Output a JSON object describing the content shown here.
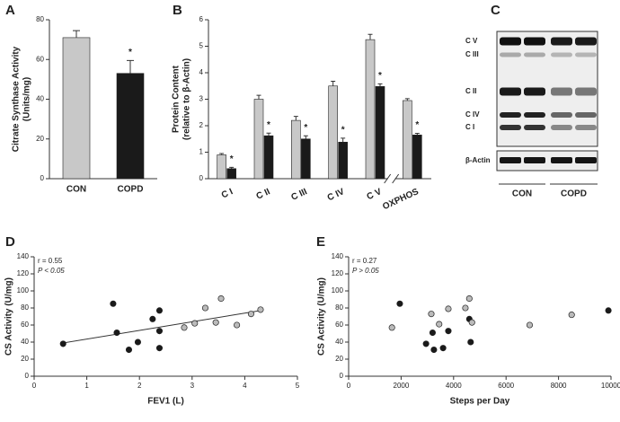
{
  "chart_data": [
    {
      "type": "bar",
      "panel": "A",
      "ylabel": [
        "Citrate Synthase Activity",
        "(Units/mg)"
      ],
      "categories": [
        "CON",
        "COPD"
      ],
      "values": [
        71,
        53
      ],
      "errors": [
        3.5,
        6.5
      ],
      "colors": [
        "#c8c8c8",
        "#1a1a1a"
      ],
      "asterisks": [
        null,
        "*"
      ],
      "ylim": [
        0,
        80
      ],
      "yticks": [
        0,
        20,
        40,
        60,
        80
      ]
    },
    {
      "type": "bar",
      "panel": "B",
      "ylabel": [
        "Protein Content",
        "(relative to β-Actin)"
      ],
      "categories": [
        "C I",
        "C II",
        "C III",
        "C IV",
        "C V",
        "OXPHOS"
      ],
      "series": [
        {
          "color": "#c8c8c8",
          "values": [
            0.9,
            3.0,
            2.2,
            3.5,
            5.25,
            2.95
          ],
          "errors": [
            0.05,
            0.15,
            0.15,
            0.18,
            0.2,
            0.07
          ]
        },
        {
          "color": "#1a1a1a",
          "values": [
            0.38,
            1.62,
            1.5,
            1.38,
            3.48,
            1.65
          ],
          "errors": [
            0.05,
            0.1,
            0.12,
            0.15,
            0.1,
            0.06
          ],
          "asterisks": [
            "*",
            "*",
            "*",
            "*",
            "*",
            "*"
          ]
        }
      ],
      "ylim": [
        0,
        6
      ],
      "yticks": [
        0,
        1,
        2,
        3,
        4,
        5,
        6
      ]
    },
    {
      "type": "scatter",
      "panel": "D",
      "xlabel": "FEV1 (L)",
      "ylabel": "CS Activity (U/mg)",
      "annotations": [
        "r = 0.55",
        "P < 0.05"
      ],
      "series": [
        {
          "color": "#1a1a1a",
          "x": [
            0.55,
            1.5,
            1.57,
            1.8,
            1.97,
            2.25,
            2.38,
            2.38,
            2.38
          ],
          "y": [
            38,
            85,
            51,
            31,
            40,
            67,
            77,
            53,
            33
          ]
        },
        {
          "color": "#bbbbbb",
          "x": [
            2.85,
            3.05,
            3.25,
            3.45,
            3.55,
            3.85,
            4.12,
            4.3
          ],
          "y": [
            57,
            62,
            80,
            63,
            91,
            60,
            73,
            78
          ]
        }
      ],
      "fit": {
        "x": [
          0.55,
          4.3
        ],
        "y": [
          39,
          77
        ]
      },
      "xlim": [
        0,
        5
      ],
      "xticks": [
        0,
        1,
        2,
        3,
        4,
        5
      ],
      "ylim": [
        0,
        140
      ],
      "yticks": [
        0,
        20,
        40,
        60,
        80,
        100,
        120,
        140
      ]
    },
    {
      "type": "scatter",
      "panel": "E",
      "xlabel": "Steps per Day",
      "ylabel": "CS Activity (U/mg)",
      "annotations": [
        "r = 0.27",
        "P > 0.05"
      ],
      "series": [
        {
          "color": "#1a1a1a",
          "x": [
            1950,
            2950,
            3200,
            3250,
            3600,
            3800,
            4600,
            4650,
            9900
          ],
          "y": [
            85,
            38,
            51,
            31,
            33,
            53,
            67,
            40,
            77
          ]
        },
        {
          "color": "#bbbbbb",
          "x": [
            1650,
            3150,
            3450,
            3800,
            4450,
            4600,
            4700,
            6900,
            8500
          ],
          "y": [
            57,
            73,
            61,
            79,
            80,
            91,
            63,
            60,
            72
          ]
        }
      ],
      "xlim": [
        0,
        10000
      ],
      "xticks": [
        0,
        2000,
        4000,
        6000,
        8000,
        10000
      ],
      "ylim": [
        0,
        140
      ],
      "yticks": [
        0,
        20,
        40,
        60,
        80,
        100,
        120,
        140
      ]
    }
  ],
  "blot": {
    "panel": "C",
    "bands": [
      "C V",
      "C III",
      "C II",
      "C IV",
      "C I"
    ],
    "loading": "β-Actin",
    "groups": [
      "CON",
      "COPD"
    ]
  }
}
